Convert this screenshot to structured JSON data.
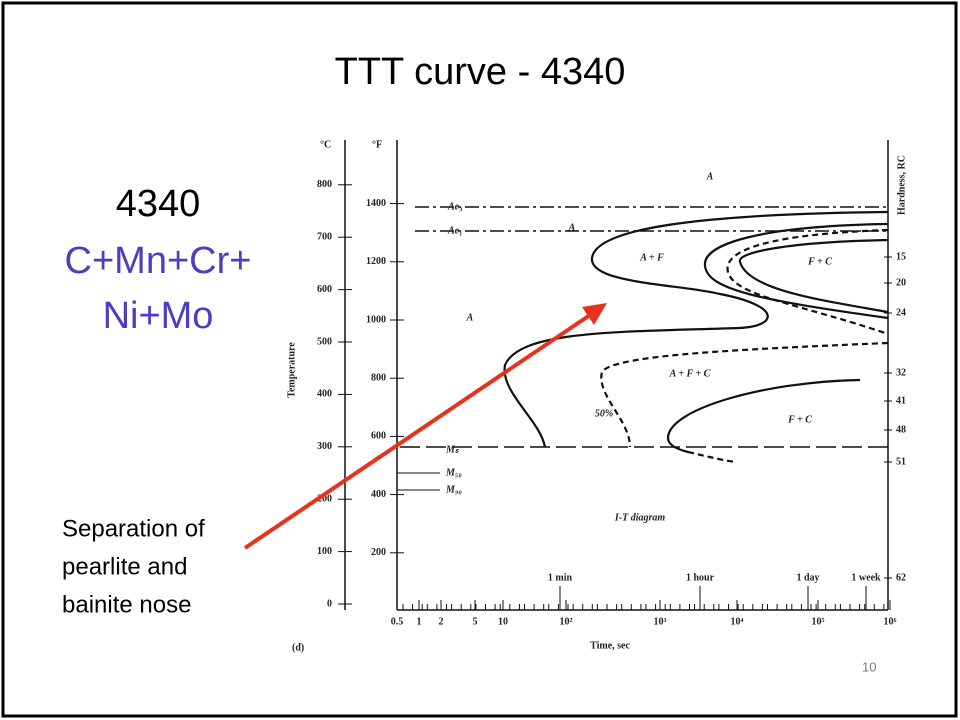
{
  "slide": {
    "title": "TTT curve - 4340",
    "subtitle": "4340",
    "formula": [
      "C+Mn+Cr+",
      "Ni+Mo"
    ],
    "annotation": [
      "Separation of",
      "pearlite and",
      "bainite nose"
    ],
    "page_number": "10"
  },
  "diagram": {
    "celsius_unit": "°C",
    "fahrenheit_unit": "°F",
    "y_label": "Temperature",
    "y2_label": "Hardness, RC",
    "x_label": "Time, sec",
    "panel": "(d)",
    "caption": "I-T diagram",
    "celsius_ticks": [
      800,
      700,
      600,
      500,
      400,
      300,
      200,
      100,
      0
    ],
    "fahrenheit_ticks": [
      1400,
      1200,
      1000,
      800,
      600,
      400,
      200
    ],
    "hardness_ticks": [
      15,
      20,
      24,
      32,
      41,
      48,
      51,
      62
    ],
    "time_ticks": [
      "0.5",
      "1",
      "2",
      "5",
      "10",
      "10²",
      "10³",
      "10⁴",
      "10⁵",
      "10⁶"
    ],
    "time_markers": [
      "1 min",
      "1 hour",
      "1 day",
      "1 week"
    ],
    "line_labels": [
      "Ae₃",
      "Ae₁",
      "Mₛ",
      "M₅₀",
      "M₉₀"
    ],
    "regions": [
      "A",
      "A",
      "A",
      "A + F",
      "F + C",
      "A + F + C",
      "50%",
      "F + C"
    ]
  }
}
